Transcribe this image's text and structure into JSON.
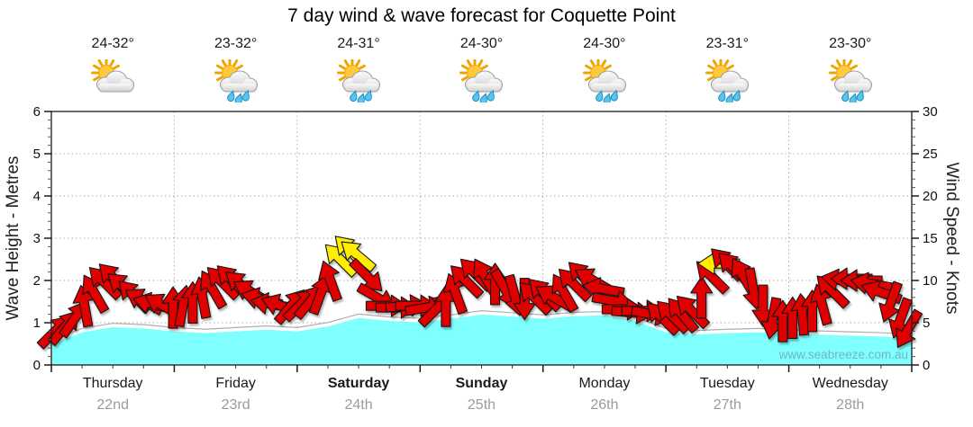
{
  "title": "7 day wind & wave forecast for Coquette Point",
  "watermark": "www.seabreeze.com.au",
  "days": [
    {
      "name": "Thursday",
      "date": "22nd",
      "bold": false,
      "temp": "24-32°",
      "icon": "partly-cloudy"
    },
    {
      "name": "Friday",
      "date": "23rd",
      "bold": false,
      "temp": "23-32°",
      "icon": "showers"
    },
    {
      "name": "Saturday",
      "date": "24th",
      "bold": true,
      "temp": "24-31°",
      "icon": "showers"
    },
    {
      "name": "Sunday",
      "date": "25th",
      "bold": true,
      "temp": "24-30°",
      "icon": "showers"
    },
    {
      "name": "Monday",
      "date": "26th",
      "bold": false,
      "temp": "24-30°",
      "icon": "showers"
    },
    {
      "name": "Tuesday",
      "date": "27th",
      "bold": false,
      "temp": "23-31°",
      "icon": "showers"
    },
    {
      "name": "Wednesday",
      "date": "28th",
      "bold": false,
      "temp": "23-30°",
      "icon": "showers"
    }
  ],
  "chart_data": {
    "type": "area",
    "title": "7 day wind & wave forecast for Coquette Point",
    "left_axis": {
      "label": "Wave Height - Metres",
      "min": 0,
      "max": 6,
      "ticks": [
        0,
        1,
        2,
        3,
        4,
        5,
        6
      ],
      "minor_step": 0.2
    },
    "right_axis": {
      "label": "Wind Speed - Knots",
      "min": 0,
      "max": 30,
      "ticks": [
        0,
        5,
        10,
        15,
        20,
        25,
        30
      ],
      "minor_step": 1
    },
    "x_axis": {
      "categories": [
        "Thursday",
        "Friday",
        "Saturday",
        "Sunday",
        "Monday",
        "Tuesday",
        "Wednesday"
      ],
      "span_days": 7,
      "minor_step_days": 0.25,
      "grid": true
    },
    "wave_series": {
      "name": "Wave Height (metres)",
      "fill_color": "#80FFFF",
      "points": [
        [
          0,
          0.5
        ],
        [
          0.25,
          0.78
        ],
        [
          0.5,
          0.9
        ],
        [
          0.75,
          0.87
        ],
        [
          1,
          0.8
        ],
        [
          1.25,
          0.76
        ],
        [
          1.5,
          0.8
        ],
        [
          1.75,
          0.84
        ],
        [
          2,
          0.8
        ],
        [
          2.25,
          0.92
        ],
        [
          2.5,
          1.12
        ],
        [
          2.75,
          1.05
        ],
        [
          3,
          1.02
        ],
        [
          3.25,
          1.1
        ],
        [
          3.5,
          1.2
        ],
        [
          3.75,
          1.15
        ],
        [
          4,
          1.1
        ],
        [
          4.25,
          1.16
        ],
        [
          4.5,
          1.18
        ],
        [
          4.75,
          1.05
        ],
        [
          5,
          0.78
        ],
        [
          5.25,
          0.73
        ],
        [
          5.5,
          0.76
        ],
        [
          5.75,
          0.78
        ],
        [
          6,
          0.75
        ],
        [
          6.25,
          0.72
        ],
        [
          6.5,
          0.7
        ],
        [
          6.75,
          0.68
        ],
        [
          7,
          0.64
        ]
      ]
    },
    "wind_arrows": {
      "name": "Wind speed (knots) and direction (arrow points downwind, degrees clockwise from up)",
      "colors": {
        "r": "#E00000",
        "y": "#FFEE00"
      },
      "arrows": [
        [
          0.03,
          4.0,
          45,
          "r"
        ],
        [
          0.11,
          4.5,
          40,
          "r"
        ],
        [
          0.19,
          5.5,
          35,
          "r"
        ],
        [
          0.27,
          7.0,
          350,
          "r"
        ],
        [
          0.35,
          8.5,
          330,
          "r"
        ],
        [
          0.43,
          9.8,
          315,
          "r"
        ],
        [
          0.51,
          10.2,
          315,
          "r"
        ],
        [
          0.59,
          9.2,
          310,
          "r"
        ],
        [
          0.67,
          8.2,
          315,
          "r"
        ],
        [
          0.75,
          7.6,
          300,
          "r"
        ],
        [
          0.83,
          7.2,
          285,
          "r"
        ],
        [
          0.91,
          7.0,
          300,
          "r"
        ],
        [
          0.99,
          6.8,
          0,
          "r"
        ],
        [
          1.07,
          7.0,
          10,
          "r"
        ],
        [
          1.15,
          7.4,
          0,
          "r"
        ],
        [
          1.23,
          8.0,
          350,
          "r"
        ],
        [
          1.31,
          9.0,
          330,
          "r"
        ],
        [
          1.39,
          9.8,
          315,
          "r"
        ],
        [
          1.47,
          10.0,
          315,
          "r"
        ],
        [
          1.55,
          9.4,
          310,
          "r"
        ],
        [
          1.63,
          8.6,
          300,
          "r"
        ],
        [
          1.71,
          7.8,
          285,
          "r"
        ],
        [
          1.79,
          7.2,
          280,
          "r"
        ],
        [
          1.87,
          7.0,
          290,
          "r"
        ],
        [
          1.95,
          7.0,
          40,
          "r"
        ],
        [
          2.03,
          7.2,
          45,
          "r"
        ],
        [
          2.11,
          7.6,
          40,
          "r"
        ],
        [
          2.19,
          8.4,
          20,
          "r"
        ],
        [
          2.27,
          10.0,
          340,
          "r"
        ],
        [
          2.35,
          12.5,
          315,
          "y"
        ],
        [
          2.43,
          13.5,
          315,
          "y"
        ],
        [
          2.49,
          13.0,
          310,
          "y"
        ],
        [
          2.57,
          10.5,
          135,
          "r"
        ],
        [
          2.65,
          8.0,
          120,
          "r"
        ],
        [
          2.73,
          7.0,
          90,
          "r"
        ],
        [
          2.81,
          6.8,
          90,
          "r"
        ],
        [
          2.89,
          7.0,
          85,
          "r"
        ],
        [
          2.97,
          7.0,
          90,
          "r"
        ],
        [
          3.05,
          6.8,
          80,
          "r"
        ],
        [
          3.13,
          6.6,
          45,
          "r"
        ],
        [
          3.21,
          7.0,
          0,
          "r"
        ],
        [
          3.29,
          8.5,
          340,
          "r"
        ],
        [
          3.37,
          10.0,
          315,
          "r"
        ],
        [
          3.45,
          10.8,
          315,
          "r"
        ],
        [
          3.53,
          10.4,
          330,
          "r"
        ],
        [
          3.61,
          9.6,
          0,
          "r"
        ],
        [
          3.69,
          9.0,
          150,
          "r"
        ],
        [
          3.77,
          8.2,
          165,
          "r"
        ],
        [
          3.85,
          7.8,
          180,
          "r"
        ],
        [
          3.93,
          8.0,
          315,
          "r"
        ],
        [
          4.01,
          8.4,
          315,
          "r"
        ],
        [
          4.09,
          8.0,
          300,
          "r"
        ],
        [
          4.17,
          8.6,
          330,
          "r"
        ],
        [
          4.25,
          9.6,
          315,
          "r"
        ],
        [
          4.33,
          10.4,
          315,
          "r"
        ],
        [
          4.41,
          10.0,
          300,
          "r"
        ],
        [
          4.49,
          9.0,
          280,
          "r"
        ],
        [
          4.57,
          7.6,
          100,
          "r"
        ],
        [
          4.65,
          6.6,
          90,
          "r"
        ],
        [
          4.73,
          6.2,
          95,
          "r"
        ],
        [
          4.81,
          6.4,
          90,
          "r"
        ],
        [
          4.89,
          6.0,
          100,
          "r"
        ],
        [
          4.97,
          5.6,
          315,
          "r"
        ],
        [
          5.05,
          5.8,
          315,
          "r"
        ],
        [
          5.13,
          6.0,
          320,
          "r"
        ],
        [
          5.21,
          6.4,
          315,
          "r"
        ],
        [
          5.29,
          8.0,
          0,
          "r"
        ],
        [
          5.37,
          10.5,
          315,
          "r"
        ],
        [
          5.43,
          12.0,
          270,
          "y"
        ],
        [
          5.49,
          12.0,
          315,
          "r"
        ],
        [
          5.55,
          11.5,
          315,
          "r"
        ],
        [
          5.63,
          10.5,
          330,
          "r"
        ],
        [
          5.71,
          9.0,
          170,
          "r"
        ],
        [
          5.79,
          7.0,
          180,
          "r"
        ],
        [
          5.87,
          5.5,
          190,
          "r"
        ],
        [
          5.95,
          5.2,
          0,
          "r"
        ],
        [
          6.03,
          5.6,
          0,
          "r"
        ],
        [
          6.11,
          6.0,
          355,
          "r"
        ],
        [
          6.19,
          6.4,
          0,
          "r"
        ],
        [
          6.27,
          7.2,
          345,
          "r"
        ],
        [
          6.35,
          8.8,
          315,
          "r"
        ],
        [
          6.43,
          10.0,
          280,
          "r"
        ],
        [
          6.51,
          10.2,
          270,
          "r"
        ],
        [
          6.59,
          10.0,
          270,
          "r"
        ],
        [
          6.67,
          9.6,
          280,
          "r"
        ],
        [
          6.75,
          8.6,
          290,
          "r"
        ],
        [
          6.83,
          7.4,
          200,
          "r"
        ],
        [
          6.91,
          5.5,
          200,
          "r"
        ],
        [
          6.97,
          4.2,
          210,
          "r"
        ]
      ]
    },
    "legend": "none",
    "grid_color": "#ABABAB",
    "watermark": "www.seabreeze.com.au"
  },
  "colors": {
    "wave_fill": "#80FFFF",
    "arrow_red": "#E00000",
    "arrow_yellow": "#FFEE00",
    "date_gray": "#9B9B9B"
  }
}
